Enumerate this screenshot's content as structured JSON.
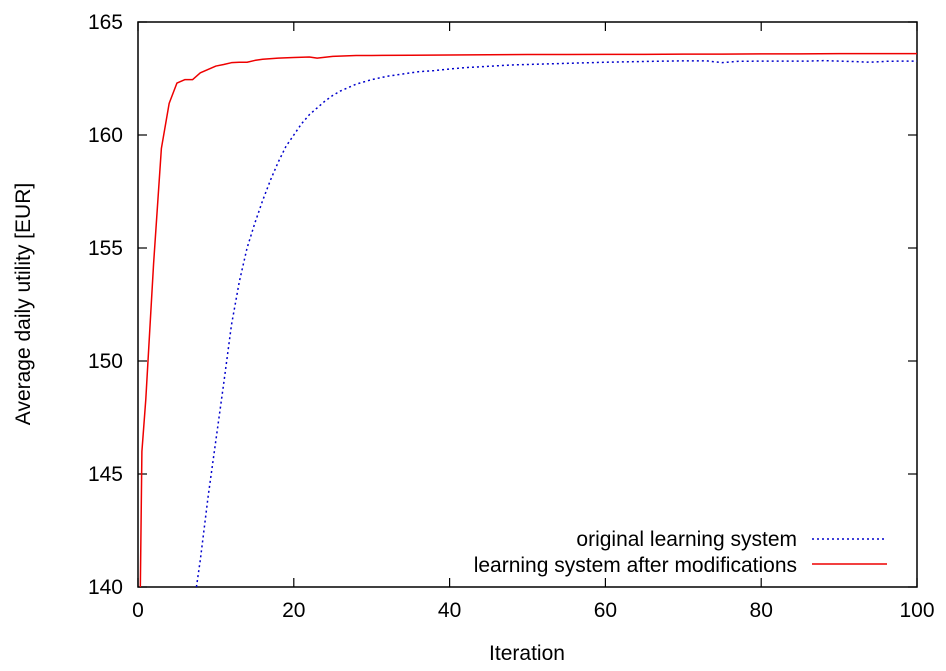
{
  "chart_data": {
    "type": "line",
    "title": "",
    "xlabel": "Iteration",
    "ylabel": "Average daily utility [EUR]",
    "xlim": [
      0,
      100
    ],
    "ylim": [
      140,
      165
    ],
    "xticks": [
      0,
      20,
      40,
      60,
      80,
      100
    ],
    "yticks": [
      140,
      145,
      150,
      155,
      160,
      165
    ],
    "grid": false,
    "legend_position": "bottom-right",
    "series": [
      {
        "name": "original learning system",
        "color": "#0000cc",
        "style": "dotted",
        "points": [
          [
            7.5,
            140.0
          ],
          [
            8,
            141.2
          ],
          [
            9,
            144.0
          ],
          [
            10,
            146.5
          ],
          [
            11,
            149.0
          ],
          [
            12,
            151.6
          ],
          [
            13,
            153.5
          ],
          [
            14,
            155.0
          ],
          [
            15,
            156.1
          ],
          [
            16,
            157.1
          ],
          [
            17,
            158.0
          ],
          [
            18,
            158.8
          ],
          [
            19,
            159.5
          ],
          [
            20,
            160.0
          ],
          [
            21,
            160.5
          ],
          [
            22,
            160.9
          ],
          [
            23,
            161.2
          ],
          [
            24,
            161.5
          ],
          [
            25,
            161.75
          ],
          [
            26,
            161.95
          ],
          [
            27,
            162.1
          ],
          [
            28,
            162.25
          ],
          [
            29,
            162.35
          ],
          [
            30,
            162.45
          ],
          [
            32,
            162.6
          ],
          [
            34,
            162.7
          ],
          [
            36,
            162.8
          ],
          [
            38,
            162.85
          ],
          [
            40,
            162.92
          ],
          [
            42,
            162.98
          ],
          [
            44,
            163.02
          ],
          [
            46,
            163.06
          ],
          [
            48,
            163.1
          ],
          [
            50,
            163.12
          ],
          [
            52,
            163.14
          ],
          [
            55,
            163.17
          ],
          [
            58,
            163.2
          ],
          [
            60,
            163.22
          ],
          [
            63,
            163.24
          ],
          [
            66,
            163.26
          ],
          [
            70,
            163.28
          ],
          [
            73,
            163.28
          ],
          [
            75,
            163.2
          ],
          [
            77,
            163.26
          ],
          [
            80,
            163.27
          ],
          [
            83,
            163.27
          ],
          [
            86,
            163.27
          ],
          [
            88,
            163.29
          ],
          [
            90,
            163.27
          ],
          [
            92,
            163.25
          ],
          [
            94,
            163.22
          ],
          [
            96,
            163.26
          ],
          [
            98,
            163.27
          ],
          [
            100,
            163.27
          ]
        ]
      },
      {
        "name": "learning system after modifications",
        "color": "#ee0000",
        "style": "solid",
        "points": [
          [
            0.3,
            140.0
          ],
          [
            0.5,
            146.0
          ],
          [
            1,
            148.3
          ],
          [
            2,
            154.3
          ],
          [
            3,
            159.4
          ],
          [
            4,
            161.4
          ],
          [
            5,
            162.3
          ],
          [
            6,
            162.45
          ],
          [
            7,
            162.45
          ],
          [
            8,
            162.75
          ],
          [
            9,
            162.9
          ],
          [
            10,
            163.05
          ],
          [
            11,
            163.12
          ],
          [
            12,
            163.2
          ],
          [
            13,
            163.22
          ],
          [
            14,
            163.22
          ],
          [
            15,
            163.3
          ],
          [
            16,
            163.35
          ],
          [
            18,
            163.4
          ],
          [
            20,
            163.43
          ],
          [
            22,
            163.45
          ],
          [
            23,
            163.4
          ],
          [
            25,
            163.48
          ],
          [
            28,
            163.52
          ],
          [
            30,
            163.52
          ],
          [
            35,
            163.53
          ],
          [
            40,
            163.54
          ],
          [
            45,
            163.55
          ],
          [
            50,
            163.56
          ],
          [
            55,
            163.56
          ],
          [
            60,
            163.57
          ],
          [
            65,
            163.57
          ],
          [
            70,
            163.58
          ],
          [
            75,
            163.58
          ],
          [
            80,
            163.59
          ],
          [
            85,
            163.59
          ],
          [
            90,
            163.6
          ],
          [
            95,
            163.6
          ],
          [
            100,
            163.6
          ]
        ]
      }
    ]
  }
}
